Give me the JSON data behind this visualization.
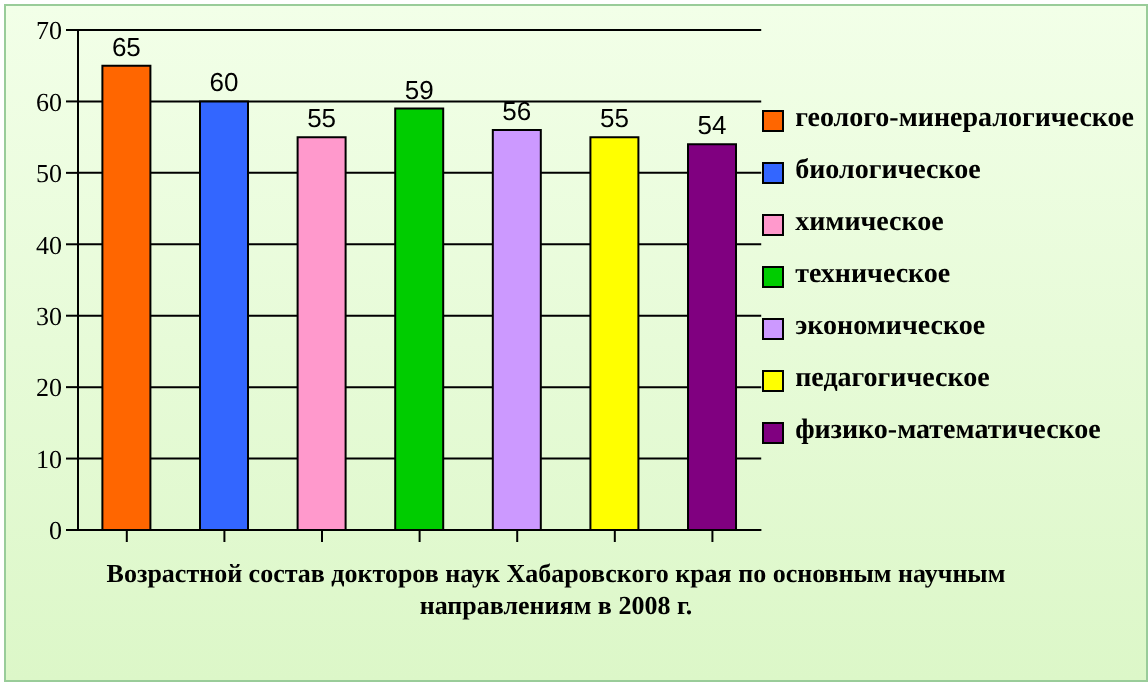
{
  "chart_data": {
    "type": "bar",
    "title": "Возрастной состав докторов наук Хабаровского края по основным  научным направлениям  в 2008 г.",
    "categories": [
      null,
      null,
      null,
      null,
      null,
      null,
      null
    ],
    "stacked": true,
    "data_labels": true,
    "ylim": [
      0,
      70
    ],
    "yticks": [
      0,
      10,
      20,
      30,
      40,
      50,
      60,
      70
    ],
    "grid": "y",
    "legend": "right",
    "series": [
      {
        "name": "геолого-минералогическое",
        "color": "#ff6600",
        "values": [
          65,
          null,
          null,
          null,
          null,
          null,
          null
        ]
      },
      {
        "name": "биологическое",
        "color": "#3366ff",
        "values": [
          null,
          60,
          null,
          null,
          null,
          null,
          null
        ]
      },
      {
        "name": "химическое",
        "color": "#ff99cc",
        "values": [
          null,
          null,
          55,
          null,
          null,
          null,
          null
        ]
      },
      {
        "name": "техническое",
        "color": "#00cc00",
        "values": [
          null,
          null,
          null,
          59,
          null,
          null,
          null
        ]
      },
      {
        "name": "экономическое",
        "color": "#cc99ff",
        "values": [
          null,
          null,
          null,
          null,
          56,
          null,
          null
        ]
      },
      {
        "name": "педагогическое",
        "color": "#ffff00",
        "values": [
          null,
          null,
          null,
          null,
          null,
          55,
          null
        ]
      },
      {
        "name": "физико-математическое",
        "color": "#800080",
        "values": [
          null,
          null,
          null,
          null,
          null,
          null,
          54
        ]
      }
    ]
  }
}
